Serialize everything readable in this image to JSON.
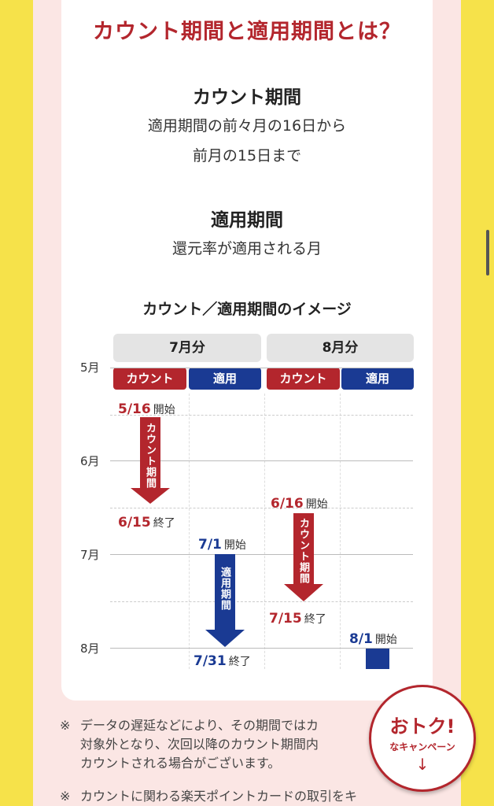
{
  "header": {
    "title": "カウント期間と適用期間とは？"
  },
  "count_period": {
    "title": "カウント期間",
    "desc_line1": "適用期間の前々月の16日から",
    "desc_line2": "前月の15日まで"
  },
  "apply_period": {
    "title": "適用期間",
    "desc": "還元率が適用される月"
  },
  "diagram": {
    "title": "カウント／適用期間のイメージ",
    "columns": [
      {
        "label": "7月分",
        "count_tag": "カウント",
        "apply_tag": "適用"
      },
      {
        "label": "8月分",
        "count_tag": "カウント",
        "apply_tag": "適用"
      }
    ],
    "months": [
      "5月",
      "6月",
      "7月",
      "8月"
    ],
    "col1": {
      "count_start": "5/16",
      "count_start_sfx": "開始",
      "count_arrow": "カウント期間",
      "count_end": "6/15",
      "count_end_sfx": "終了",
      "apply_start": "7/1",
      "apply_start_sfx": "開始",
      "apply_arrow": "適用期間",
      "apply_end": "7/31",
      "apply_end_sfx": "終了"
    },
    "col2": {
      "count_start": "6/16",
      "count_start_sfx": "開始",
      "count_arrow": "カウント期間",
      "count_end": "7/15",
      "count_end_sfx": "終了",
      "apply_start": "8/1",
      "apply_start_sfx": "開始"
    }
  },
  "notes": [
    {
      "mark": "※",
      "lines": [
        "データの遅延などにより、その期間ではカ",
        "対象外となり、次回以降のカウント期間内",
        "カウントされる場合がございます。"
      ]
    },
    {
      "mark": "※",
      "lines": [
        "カウントに関わる楽天ポイントカードの取引をキ"
      ]
    }
  ],
  "badge": {
    "line1": "おトク!",
    "line2": "なキャンペーン",
    "arrow": "↓"
  },
  "colors": {
    "red": "#b3262d",
    "blue": "#1a3a93",
    "yellow": "#f6e24a",
    "pink": "#fbe6e4"
  }
}
